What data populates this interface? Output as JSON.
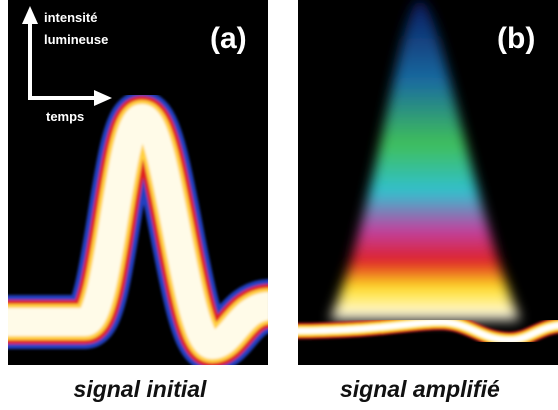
{
  "panel_a": {
    "label": "(a)",
    "axis_y": [
      "intensité",
      "lumineuse"
    ],
    "axis_x": "temps",
    "caption": "signal initial"
  },
  "panel_b": {
    "label": "(b)",
    "caption": "signal amplifié"
  }
}
